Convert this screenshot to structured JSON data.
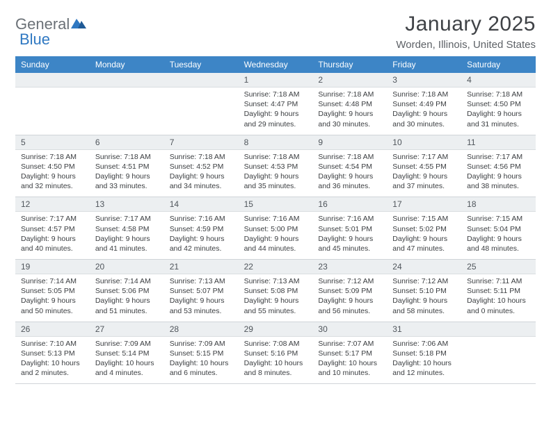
{
  "brand": {
    "part1": "General",
    "part2": "Blue"
  },
  "title": "January 2025",
  "location": "Worden, Illinois, United States",
  "colors": {
    "header_bg": "#3d85c6",
    "daynum_bg": "#eceff1",
    "text": "#3a3d40",
    "brand_gray": "#6b7177",
    "brand_blue": "#2f78c2"
  },
  "dows": [
    "Sunday",
    "Monday",
    "Tuesday",
    "Wednesday",
    "Thursday",
    "Friday",
    "Saturday"
  ],
  "weeks": [
    [
      null,
      null,
      null,
      {
        "n": "1",
        "sr": "7:18 AM",
        "ss": "4:47 PM",
        "dl": "9 hours and 29 minutes."
      },
      {
        "n": "2",
        "sr": "7:18 AM",
        "ss": "4:48 PM",
        "dl": "9 hours and 30 minutes."
      },
      {
        "n": "3",
        "sr": "7:18 AM",
        "ss": "4:49 PM",
        "dl": "9 hours and 30 minutes."
      },
      {
        "n": "4",
        "sr": "7:18 AM",
        "ss": "4:50 PM",
        "dl": "9 hours and 31 minutes."
      }
    ],
    [
      {
        "n": "5",
        "sr": "7:18 AM",
        "ss": "4:50 PM",
        "dl": "9 hours and 32 minutes."
      },
      {
        "n": "6",
        "sr": "7:18 AM",
        "ss": "4:51 PM",
        "dl": "9 hours and 33 minutes."
      },
      {
        "n": "7",
        "sr": "7:18 AM",
        "ss": "4:52 PM",
        "dl": "9 hours and 34 minutes."
      },
      {
        "n": "8",
        "sr": "7:18 AM",
        "ss": "4:53 PM",
        "dl": "9 hours and 35 minutes."
      },
      {
        "n": "9",
        "sr": "7:18 AM",
        "ss": "4:54 PM",
        "dl": "9 hours and 36 minutes."
      },
      {
        "n": "10",
        "sr": "7:17 AM",
        "ss": "4:55 PM",
        "dl": "9 hours and 37 minutes."
      },
      {
        "n": "11",
        "sr": "7:17 AM",
        "ss": "4:56 PM",
        "dl": "9 hours and 38 minutes."
      }
    ],
    [
      {
        "n": "12",
        "sr": "7:17 AM",
        "ss": "4:57 PM",
        "dl": "9 hours and 40 minutes."
      },
      {
        "n": "13",
        "sr": "7:17 AM",
        "ss": "4:58 PM",
        "dl": "9 hours and 41 minutes."
      },
      {
        "n": "14",
        "sr": "7:16 AM",
        "ss": "4:59 PM",
        "dl": "9 hours and 42 minutes."
      },
      {
        "n": "15",
        "sr": "7:16 AM",
        "ss": "5:00 PM",
        "dl": "9 hours and 44 minutes."
      },
      {
        "n": "16",
        "sr": "7:16 AM",
        "ss": "5:01 PM",
        "dl": "9 hours and 45 minutes."
      },
      {
        "n": "17",
        "sr": "7:15 AM",
        "ss": "5:02 PM",
        "dl": "9 hours and 47 minutes."
      },
      {
        "n": "18",
        "sr": "7:15 AM",
        "ss": "5:04 PM",
        "dl": "9 hours and 48 minutes."
      }
    ],
    [
      {
        "n": "19",
        "sr": "7:14 AM",
        "ss": "5:05 PM",
        "dl": "9 hours and 50 minutes."
      },
      {
        "n": "20",
        "sr": "7:14 AM",
        "ss": "5:06 PM",
        "dl": "9 hours and 51 minutes."
      },
      {
        "n": "21",
        "sr": "7:13 AM",
        "ss": "5:07 PM",
        "dl": "9 hours and 53 minutes."
      },
      {
        "n": "22",
        "sr": "7:13 AM",
        "ss": "5:08 PM",
        "dl": "9 hours and 55 minutes."
      },
      {
        "n": "23",
        "sr": "7:12 AM",
        "ss": "5:09 PM",
        "dl": "9 hours and 56 minutes."
      },
      {
        "n": "24",
        "sr": "7:12 AM",
        "ss": "5:10 PM",
        "dl": "9 hours and 58 minutes."
      },
      {
        "n": "25",
        "sr": "7:11 AM",
        "ss": "5:11 PM",
        "dl": "10 hours and 0 minutes."
      }
    ],
    [
      {
        "n": "26",
        "sr": "7:10 AM",
        "ss": "5:13 PM",
        "dl": "10 hours and 2 minutes."
      },
      {
        "n": "27",
        "sr": "7:09 AM",
        "ss": "5:14 PM",
        "dl": "10 hours and 4 minutes."
      },
      {
        "n": "28",
        "sr": "7:09 AM",
        "ss": "5:15 PM",
        "dl": "10 hours and 6 minutes."
      },
      {
        "n": "29",
        "sr": "7:08 AM",
        "ss": "5:16 PM",
        "dl": "10 hours and 8 minutes."
      },
      {
        "n": "30",
        "sr": "7:07 AM",
        "ss": "5:17 PM",
        "dl": "10 hours and 10 minutes."
      },
      {
        "n": "31",
        "sr": "7:06 AM",
        "ss": "5:18 PM",
        "dl": "10 hours and 12 minutes."
      },
      null
    ]
  ],
  "labels": {
    "sunrise": "Sunrise: ",
    "sunset": "Sunset: ",
    "daylight": "Daylight: "
  }
}
